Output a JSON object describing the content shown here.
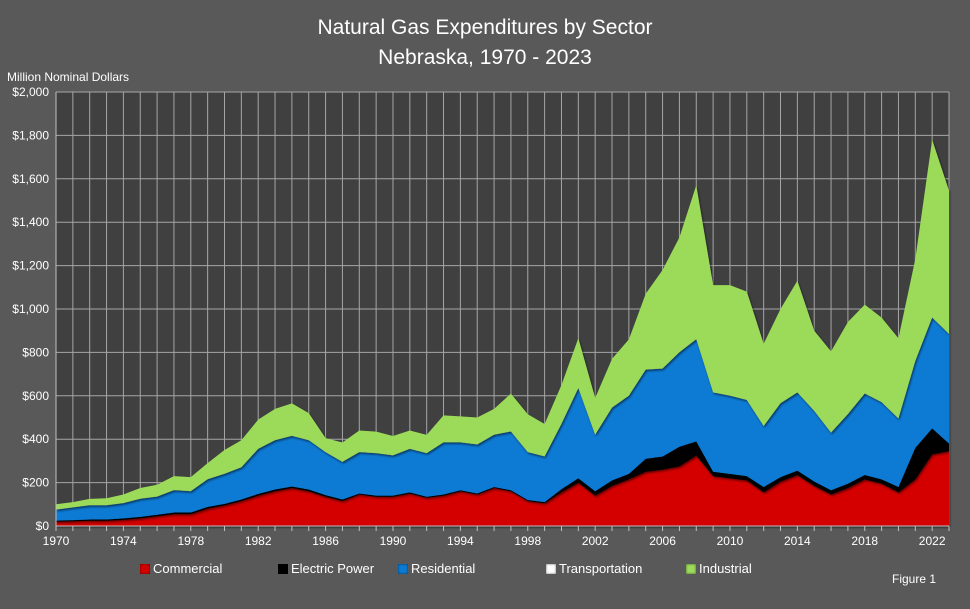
{
  "chart_data": {
    "type": "area",
    "stacked": true,
    "title": "Natural Gas Expenditures by Sector",
    "subtitle": "Nebraska, 1970 - 2023",
    "ylabel": "Million Nominal Dollars",
    "xlabel": "",
    "ylim": [
      0,
      2000
    ],
    "xlim": [
      1970,
      2023
    ],
    "y_ticks": [
      "$0",
      "$200",
      "$400",
      "$600",
      "$800",
      "$1,000",
      "$1,200",
      "$1,400",
      "$1,600",
      "$1,800",
      "$2,000"
    ],
    "x_ticks": [
      "1970",
      "1974",
      "1978",
      "1982",
      "1986",
      "1990",
      "1994",
      "1998",
      "2002",
      "2006",
      "2010",
      "2014",
      "2018",
      "2022"
    ],
    "grid": true,
    "legend_position": "bottom",
    "footnote": "Figure 1",
    "x": [
      1970,
      1971,
      1972,
      1973,
      1974,
      1975,
      1976,
      1977,
      1978,
      1979,
      1980,
      1981,
      1982,
      1983,
      1984,
      1985,
      1986,
      1987,
      1988,
      1989,
      1990,
      1991,
      1992,
      1993,
      1994,
      1995,
      1996,
      1997,
      1998,
      1999,
      2000,
      2001,
      2002,
      2003,
      2004,
      2005,
      2006,
      2007,
      2008,
      2009,
      2010,
      2011,
      2012,
      2013,
      2014,
      2015,
      2016,
      2017,
      2018,
      2019,
      2020,
      2021,
      2022,
      2023
    ],
    "series": [
      {
        "name": "Commercial",
        "color": "#d40000",
        "values": [
          20,
          22,
          24,
          24,
          28,
          35,
          45,
          55,
          55,
          80,
          95,
          115,
          140,
          160,
          175,
          160,
          135,
          115,
          145,
          135,
          135,
          150,
          130,
          140,
          160,
          145,
          175,
          160,
          115,
          105,
          155,
          200,
          140,
          185,
          215,
          250,
          260,
          275,
          325,
          230,
          220,
          210,
          155,
          205,
          235,
          185,
          145,
          175,
          215,
          195,
          155,
          215,
          330,
          345
        ]
      },
      {
        "name": "Electric Power",
        "color": "#000000",
        "values": [
          5,
          5,
          6,
          6,
          7,
          7,
          7,
          7,
          7,
          8,
          7,
          7,
          8,
          8,
          7,
          8,
          7,
          7,
          5,
          5,
          5,
          5,
          5,
          5,
          5,
          5,
          5,
          5,
          5,
          5,
          15,
          20,
          20,
          25,
          25,
          60,
          60,
          90,
          65,
          20,
          20,
          20,
          25,
          20,
          20,
          20,
          20,
          20,
          20,
          20,
          25,
          145,
          120,
          35
        ]
      },
      {
        "name": "Residential",
        "color": "#0a7ad4",
        "values": [
          50,
          58,
          65,
          65,
          70,
          83,
          83,
          103,
          98,
          127,
          138,
          148,
          207,
          227,
          233,
          227,
          198,
          173,
          190,
          195,
          185,
          200,
          200,
          240,
          220,
          225,
          240,
          270,
          220,
          210,
          300,
          415,
          260,
          335,
          360,
          410,
          405,
          435,
          470,
          365,
          360,
          350,
          280,
          340,
          360,
          325,
          265,
          320,
          375,
          355,
          315,
          400,
          510,
          505
        ]
      },
      {
        "name": "Transportation",
        "color": "#ffffff",
        "values": [
          1,
          1,
          1,
          1,
          1,
          1,
          1,
          1,
          1,
          1,
          1,
          1,
          1,
          1,
          1,
          1,
          1,
          1,
          1,
          1,
          1,
          1,
          1,
          1,
          1,
          1,
          1,
          1,
          1,
          1,
          1,
          1,
          1,
          1,
          1,
          1,
          1,
          1,
          1,
          1,
          1,
          1,
          1,
          1,
          1,
          1,
          1,
          1,
          1,
          1,
          1,
          1,
          1,
          1
        ]
      },
      {
        "name": "Industrial",
        "color": "#9cdb5a",
        "values": [
          24,
          24,
          29,
          32,
          39,
          49,
          54,
          64,
          64,
          74,
          109,
          124,
          134,
          144,
          149,
          124,
          64,
          89,
          99,
          99,
          89,
          84,
          84,
          124,
          119,
          124,
          119,
          174,
          174,
          149,
          179,
          229,
          169,
          224,
          259,
          349,
          454,
          529,
          709,
          494,
          509,
          499,
          379,
          434,
          514,
          369,
          374,
          424,
          409,
          389,
          369,
          469,
          819,
          659
        ]
      }
    ]
  }
}
